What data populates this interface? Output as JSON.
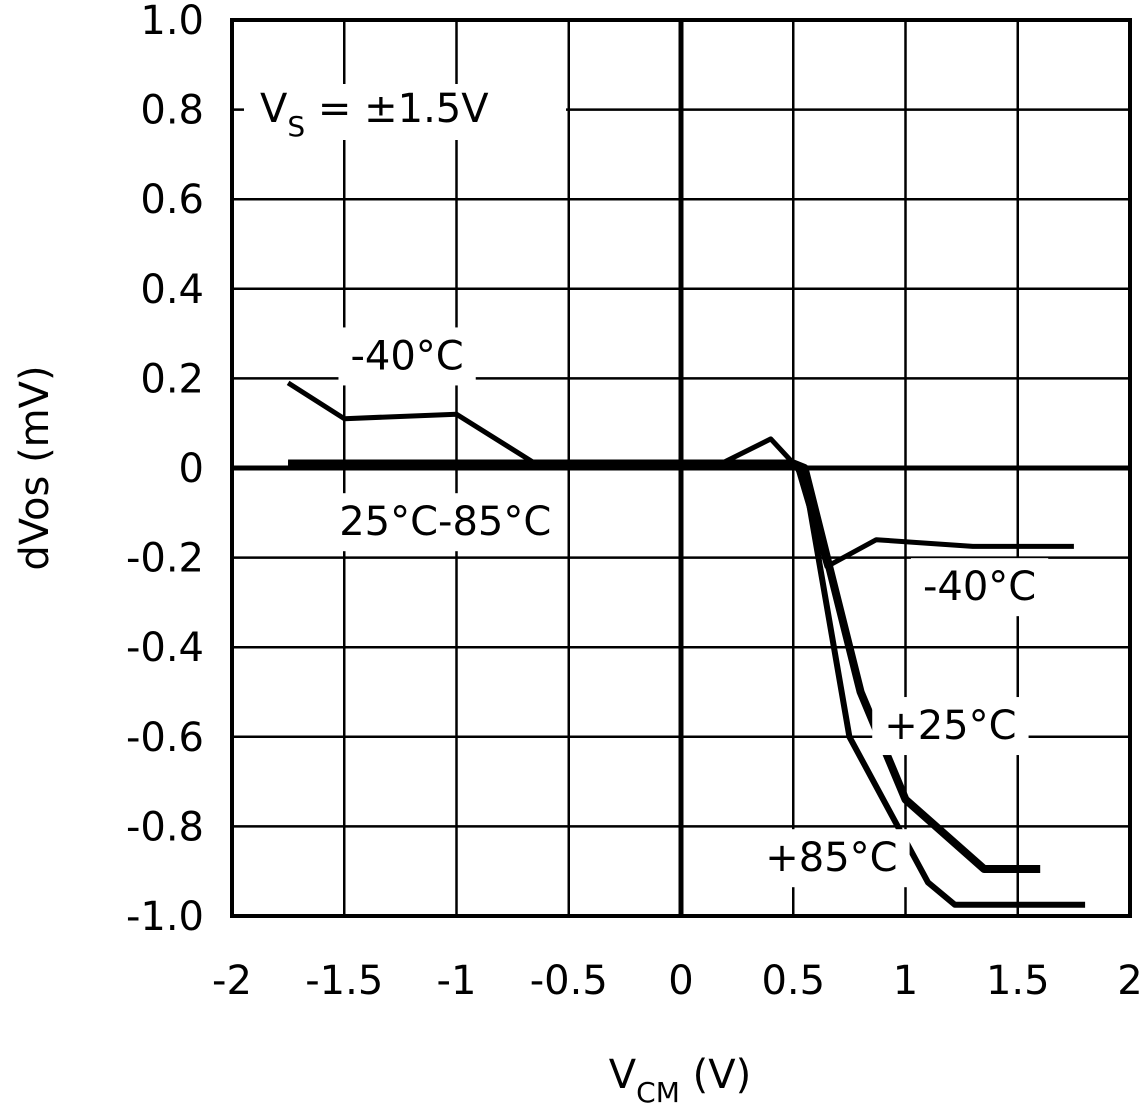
{
  "chart_data": {
    "type": "line",
    "xlabel": {
      "main": "V",
      "sub": "CM",
      "unit": " (V)"
    },
    "ylabel": "dVos (mV)",
    "xlim": [
      -2,
      2
    ],
    "ylim": [
      -1.0,
      1.0
    ],
    "x_ticks": [
      "-2",
      "-1.5",
      "-1",
      "-0.5",
      "0",
      "0.5",
      "1",
      "1.5",
      "2"
    ],
    "y_ticks": [
      "1.0",
      "0.8",
      "0.6",
      "0.4",
      "0.2",
      "0",
      "-0.2",
      "-0.4",
      "-0.6",
      "-0.8",
      "-1.0"
    ],
    "grid": true,
    "condition": {
      "main": "V",
      "sub": "S",
      "rest": " = ±1.5V"
    },
    "series": [
      {
        "name": "-40°C",
        "x": [
          -1.75,
          -1.5,
          -1.0,
          -0.65,
          0.18,
          0.4,
          0.52,
          0.65,
          0.87,
          1.3,
          1.75
        ],
        "y": [
          0.19,
          0.11,
          0.12,
          0.01,
          0.01,
          0.065,
          0.0,
          -0.22,
          -0.16,
          -0.175,
          -0.175
        ],
        "stroke": 5
      },
      {
        "name": "+25°C",
        "x": [
          -1.75,
          0.0,
          0.5,
          0.55,
          0.8,
          1.0,
          1.35,
          1.6
        ],
        "y": [
          0.01,
          0.01,
          0.01,
          0.0,
          -0.5,
          -0.74,
          -0.895,
          -0.895
        ],
        "stroke": 8
      },
      {
        "name": "+85°C",
        "x": [
          -1.75,
          0.0,
          0.5,
          0.55,
          0.75,
          1.1,
          1.22,
          1.8
        ],
        "y": [
          0.01,
          0.01,
          0.01,
          -0.02,
          -0.6,
          -0.925,
          -0.975,
          -0.975
        ],
        "stroke": 6
      }
    ],
    "annotations": [
      {
        "text": "-40°C",
        "x": -1.22,
        "y": 0.22
      },
      {
        "text": "25°C-85°C",
        "x": -1.05,
        "y": -0.15
      },
      {
        "text": "-40°C",
        "x": 1.33,
        "y": -0.295
      },
      {
        "text": "+25°C",
        "x": 1.2,
        "y": -0.605
      },
      {
        "text": "+85°C",
        "x": 0.67,
        "y": -0.9
      }
    ]
  }
}
